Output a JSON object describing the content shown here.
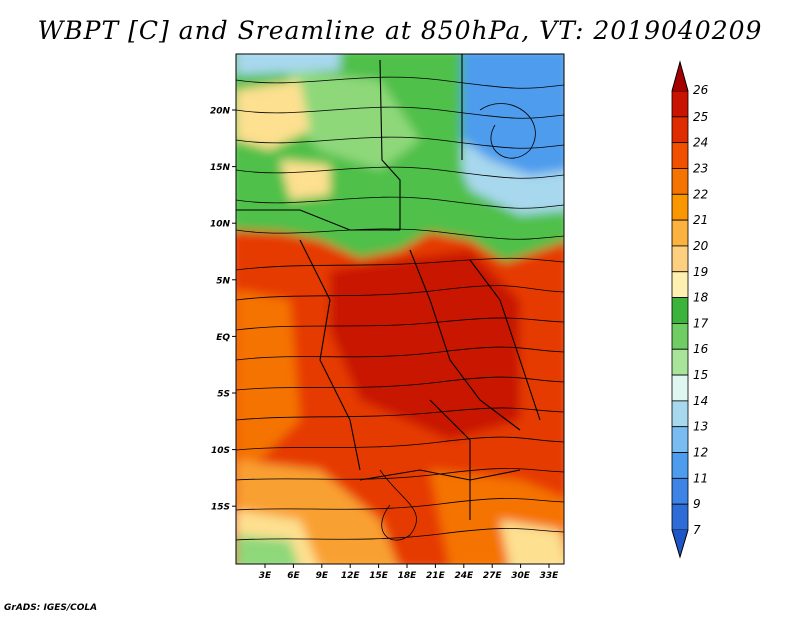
{
  "title": "WBPT [C] and Sreamline at 850hPa, VT: 2019040209",
  "credit": "GrADS: IGES/COLA",
  "map": {
    "lat_labels": [
      "20N",
      "15N",
      "10N",
      "5N",
      "EQ",
      "5S",
      "10S",
      "15S"
    ],
    "lon_labels": [
      "3E",
      "6E",
      "9E",
      "12E",
      "15E",
      "18E",
      "21E",
      "24E",
      "27E",
      "30E",
      "33E"
    ],
    "lat_range": [
      -20,
      24
    ],
    "lon_range": [
      0,
      35
    ]
  },
  "colorbar": {
    "labels": [
      "26",
      "25",
      "24",
      "23",
      "22",
      "21",
      "20",
      "19",
      "18",
      "17",
      "16",
      "15",
      "14",
      "13",
      "12",
      "11",
      "9",
      "7"
    ],
    "colors": [
      "#a50000",
      "#c81400",
      "#e02d00",
      "#f05000",
      "#f57300",
      "#f99600",
      "#fbb240",
      "#fdd080",
      "#fdf0b0",
      "#3cb43c",
      "#70cd64",
      "#a8e49a",
      "#e0f6f0",
      "#a8d8ee",
      "#78bcf2",
      "#4e9ced",
      "#3e84e6",
      "#2e6cd8",
      "#1e56c8"
    ]
  },
  "colors": {
    "hot": "#c81400",
    "warm": "#e63a00",
    "orange": "#f57300",
    "light_orange": "#f9a030",
    "pale": "#fde090",
    "green": "#4fc04a",
    "light_green": "#8ed87a",
    "blue": "#4e9ced",
    "light_blue": "#a8d8ee"
  }
}
